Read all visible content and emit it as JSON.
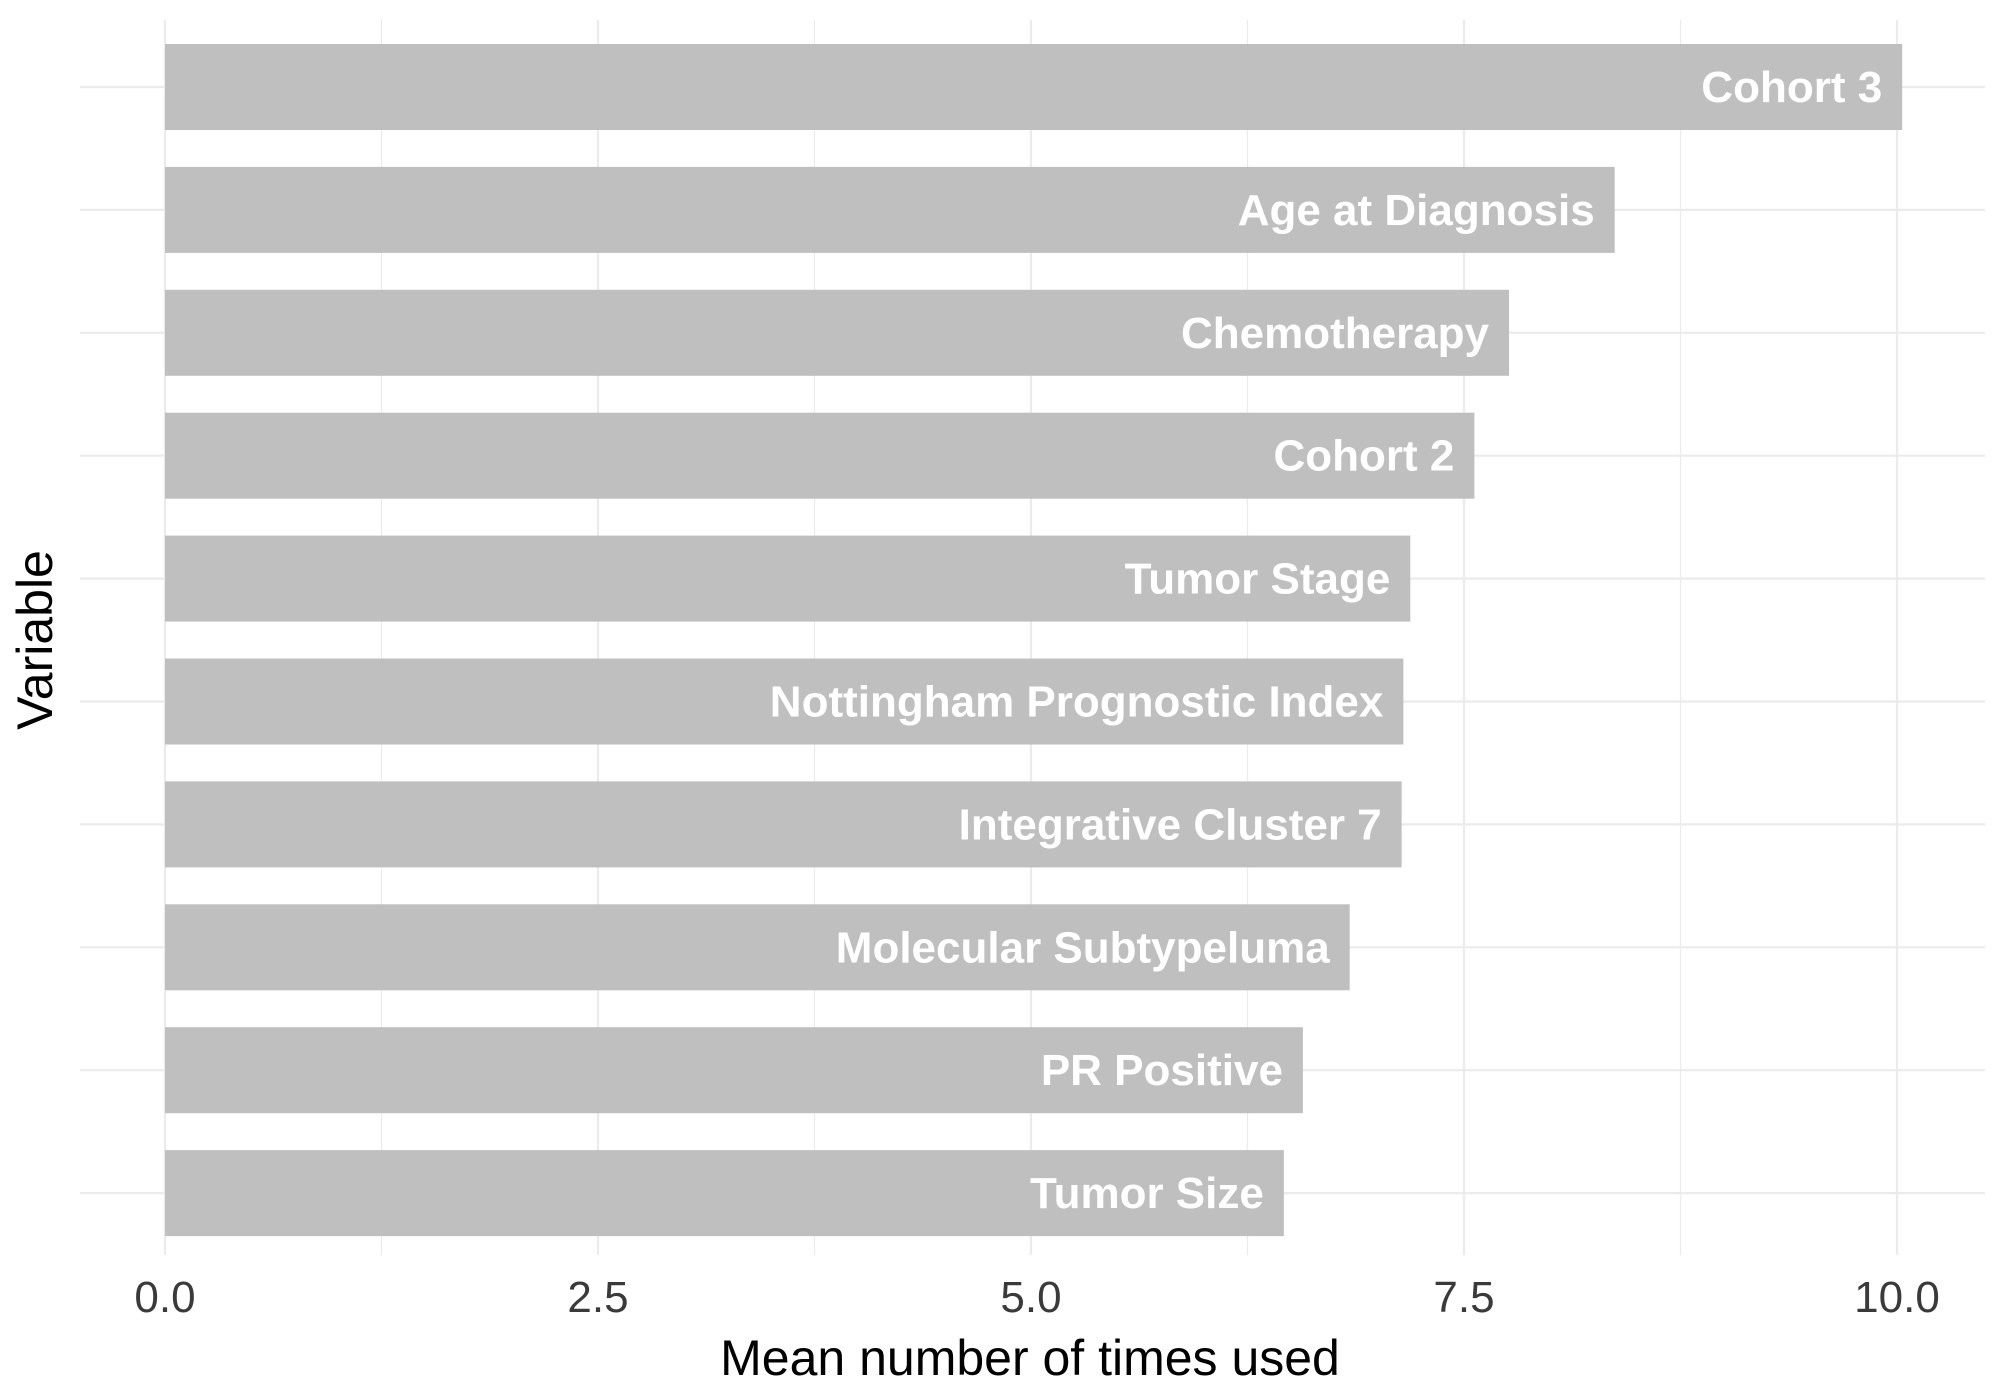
{
  "chart_data": {
    "type": "bar",
    "orientation": "horizontal",
    "categories": [
      "Cohort 3",
      "Age at Diagnosis",
      "Chemotherapy",
      "Cohort 2",
      "Tumor Stage",
      "Nottingham Prognostic Index",
      "Integrative Cluster 7",
      "Molecular Subtypeluma",
      "PR Positive",
      "Tumor Size"
    ],
    "values": [
      10.03,
      8.37,
      7.76,
      7.56,
      7.19,
      7.15,
      7.14,
      6.84,
      6.57,
      6.46
    ],
    "xlabel": "Mean number of times used",
    "ylabel": "Variable",
    "xlim": [
      0,
      10.5
    ],
    "xticks": [
      0,
      2.5,
      5,
      7.5,
      10
    ],
    "xtick_labels": [
      "0.0",
      "2.5",
      "5.0",
      "7.5",
      "10.0"
    ],
    "grid": true,
    "bar_color": "#bfbfbf",
    "label_color": "#ffffff",
    "labels_inside_bars": true
  }
}
